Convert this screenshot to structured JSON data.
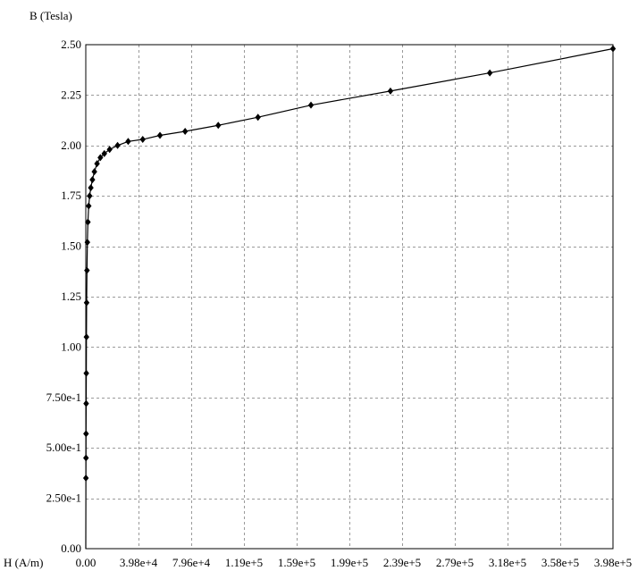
{
  "chart_data": {
    "type": "line",
    "title": "",
    "xlabel": "H (A/m)",
    "ylabel": "B (Tesla)",
    "xlim": [
      0,
      398000
    ],
    "ylim": [
      0,
      2.5
    ],
    "grid": true,
    "x_tick_labels": [
      "0.00",
      "3.98e+4",
      "7.96e+4",
      "1.19e+5",
      "1.59e+5",
      "1.99e+5",
      "2.39e+5",
      "2.79e+5",
      "3.18e+5",
      "3.58e+5",
      "3.98e+5"
    ],
    "x_tick_values": [
      0,
      39800,
      79600,
      119400,
      159200,
      199000,
      238800,
      278600,
      318400,
      358200,
      398000
    ],
    "y_tick_labels": [
      "0.00",
      "2.50e-1",
      "5.00e-1",
      "7.50e-1",
      "1.00",
      "1.25",
      "1.50",
      "1.75",
      "2.00",
      "2.25",
      "2.50"
    ],
    "y_tick_values": [
      0,
      0.25,
      0.5,
      0.75,
      1.0,
      1.25,
      1.5,
      1.75,
      2.0,
      2.25,
      2.5
    ],
    "series": [
      {
        "color": "#000000",
        "marker": "diamond",
        "points": [
          [
            0,
            0
          ],
          [
            100,
            0.35
          ],
          [
            150,
            0.45
          ],
          [
            200,
            0.57
          ],
          [
            300,
            0.72
          ],
          [
            400,
            0.87
          ],
          [
            500,
            1.05
          ],
          [
            650,
            1.22
          ],
          [
            900,
            1.38
          ],
          [
            1200,
            1.52
          ],
          [
            1600,
            1.62
          ],
          [
            2200,
            1.7
          ],
          [
            2900,
            1.75
          ],
          [
            3800,
            1.79
          ],
          [
            5000,
            1.83
          ],
          [
            6500,
            1.87
          ],
          [
            8500,
            1.91
          ],
          [
            11000,
            1.94
          ],
          [
            14000,
            1.96
          ],
          [
            18000,
            1.98
          ],
          [
            24000,
            2.0
          ],
          [
            32000,
            2.02
          ],
          [
            43000,
            2.03
          ],
          [
            56000,
            2.05
          ],
          [
            75000,
            2.07
          ],
          [
            100000,
            2.1
          ],
          [
            130000,
            2.14
          ],
          [
            170000,
            2.2
          ],
          [
            230000,
            2.27
          ],
          [
            305000,
            2.36
          ],
          [
            398000,
            2.48
          ]
        ]
      }
    ]
  }
}
